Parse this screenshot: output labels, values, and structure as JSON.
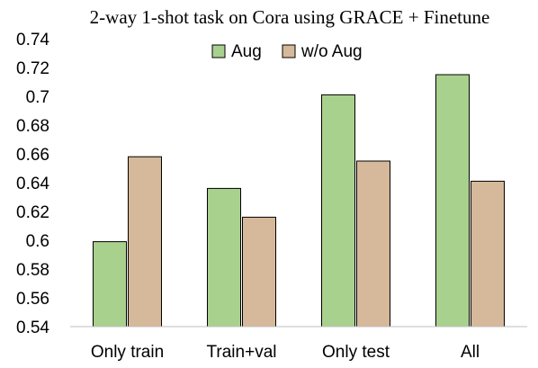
{
  "chart_data": {
    "type": "bar",
    "title": "2-way 1-shot task on Cora using GRACE + Finetune",
    "categories": [
      "Only train",
      "Train+val",
      "Only test",
      "All"
    ],
    "series": [
      {
        "name": "Aug",
        "values": [
          0.599,
          0.636,
          0.701,
          0.715
        ],
        "color": "#a9d18e"
      },
      {
        "name": "w/o Aug",
        "values": [
          0.658,
          0.616,
          0.655,
          0.641
        ],
        "color": "#d6b89b"
      }
    ],
    "ylim": [
      0.54,
      0.74
    ],
    "yticks": [
      "0.54",
      "0.56",
      "0.58",
      "0.6",
      "0.62",
      "0.64",
      "0.66",
      "0.68",
      "0.7",
      "0.72",
      "0.74"
    ],
    "grid": false,
    "legend_position": "top-center"
  }
}
